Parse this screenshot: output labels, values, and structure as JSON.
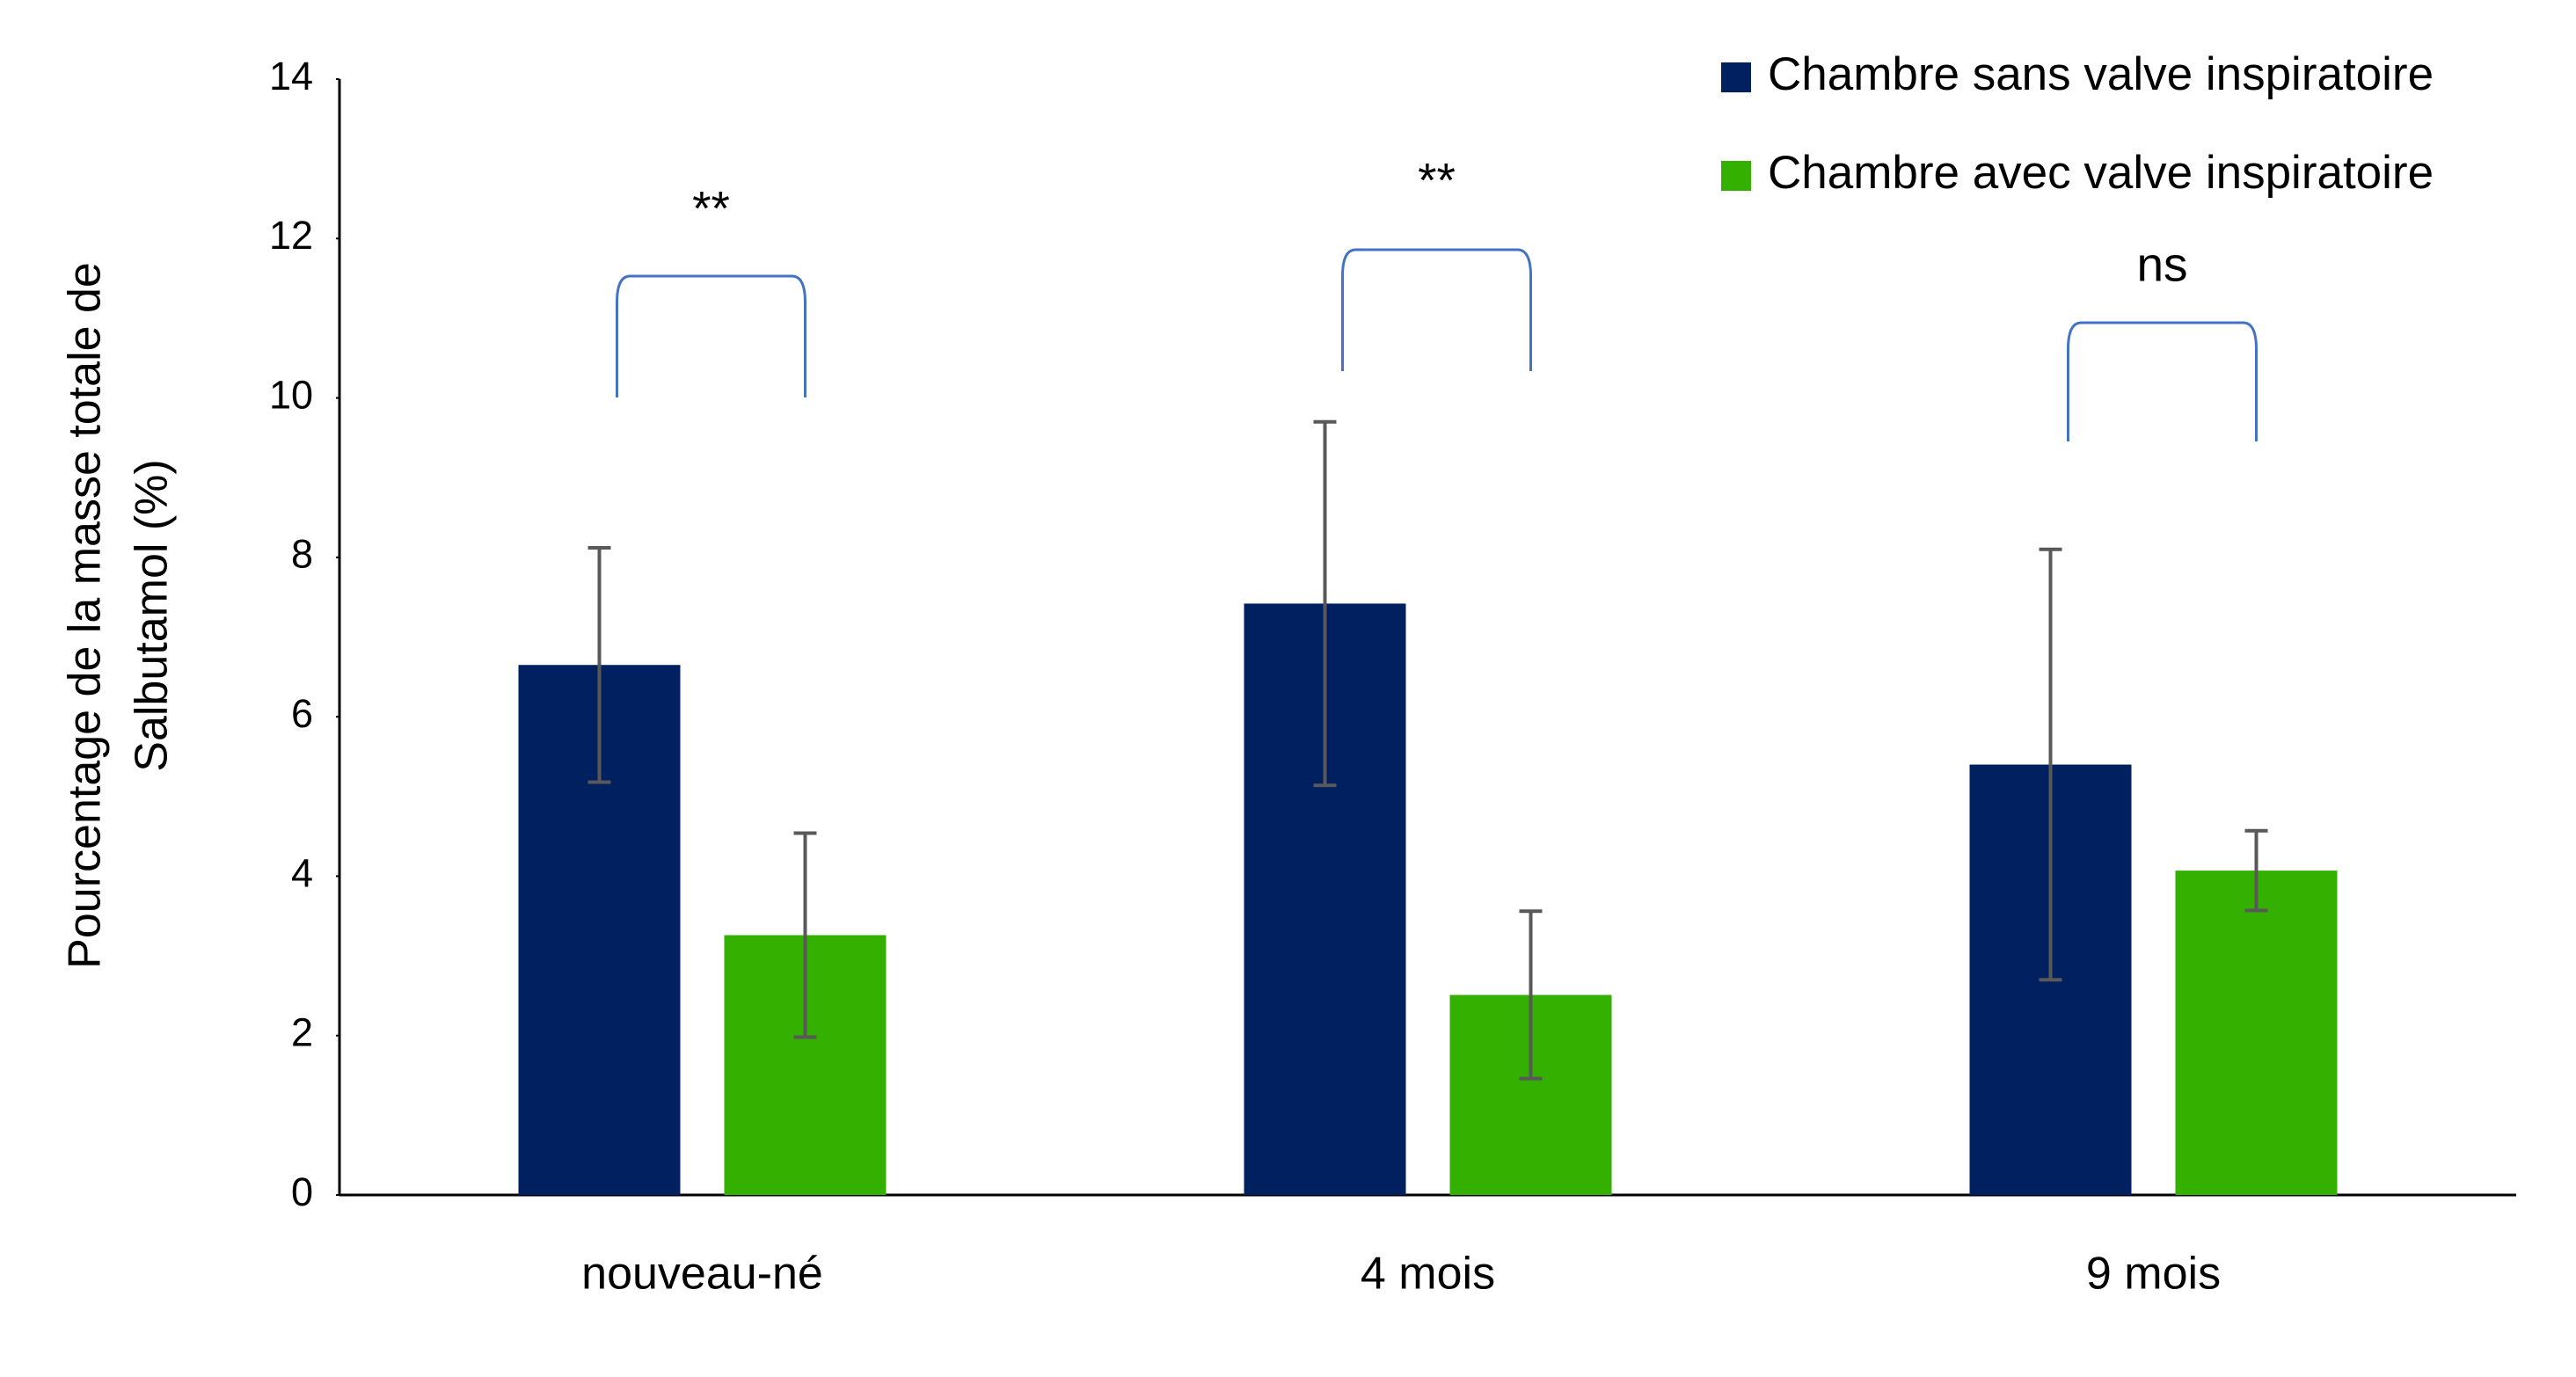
{
  "chart_data": {
    "type": "bar",
    "ylabel": [
      "Pourcentage de la masse totale de",
      "Salbutamol (%)"
    ],
    "categories": [
      "nouveau-né",
      "4 mois",
      "9 mois"
    ],
    "series": [
      {
        "name": "Chambre sans valve inspiratoire",
        "color": "#002060",
        "values": [
          6.65,
          7.42,
          5.4
        ],
        "errors": [
          1.47,
          2.28,
          2.7
        ]
      },
      {
        "name": "Chambre avec valve inspiratoire",
        "color": "#33b000",
        "values": [
          3.26,
          2.51,
          4.07
        ],
        "errors": [
          1.28,
          1.05,
          0.5
        ]
      }
    ],
    "annotations": [
      "**",
      "**",
      "ns"
    ],
    "ylim": [
      0,
      14
    ],
    "yticks": [
      0,
      2,
      4,
      6,
      8,
      10,
      12,
      14
    ],
    "grid": false,
    "legend": "top-right"
  }
}
